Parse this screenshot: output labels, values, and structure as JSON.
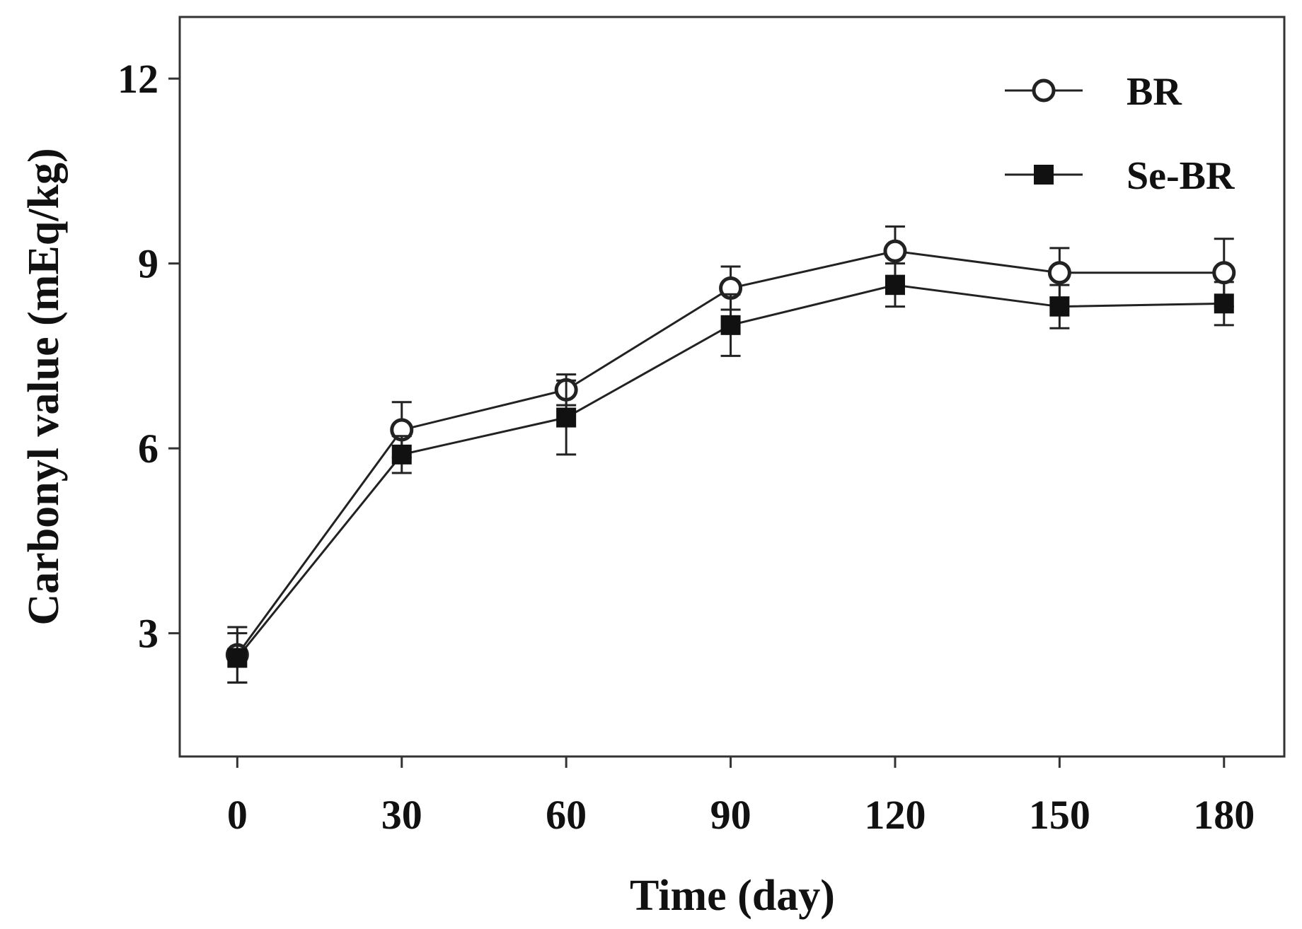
{
  "chart_data": {
    "type": "line",
    "title": "",
    "xlabel": "Time (day)",
    "ylabel": "Carbonyl value (mEq/kg)",
    "x": [
      0,
      30,
      60,
      90,
      120,
      150,
      180
    ],
    "x_tick_labels": [
      "0",
      "30",
      "60",
      "90",
      "120",
      "150",
      "180"
    ],
    "y_ticks": [
      3,
      6,
      9,
      12
    ],
    "y_tick_labels": [
      "3",
      "6",
      "9",
      "12"
    ],
    "xlim": [
      -10.5,
      191
    ],
    "ylim": [
      1.0,
      13.0
    ],
    "grid": false,
    "legend_position": "top-right",
    "series": [
      {
        "name": "BR",
        "marker": "open-circle",
        "values": [
          2.65,
          6.3,
          6.95,
          8.6,
          9.2,
          8.85,
          8.85
        ],
        "errors": [
          0.45,
          0.45,
          0.25,
          0.35,
          0.4,
          0.4,
          0.55
        ]
      },
      {
        "name": "Se-BR",
        "marker": "filled-square",
        "values": [
          2.6,
          5.9,
          6.5,
          8.0,
          8.65,
          8.3,
          8.35
        ],
        "errors": [
          0.4,
          0.3,
          0.6,
          0.5,
          0.35,
          0.35,
          0.35
        ]
      }
    ]
  }
}
